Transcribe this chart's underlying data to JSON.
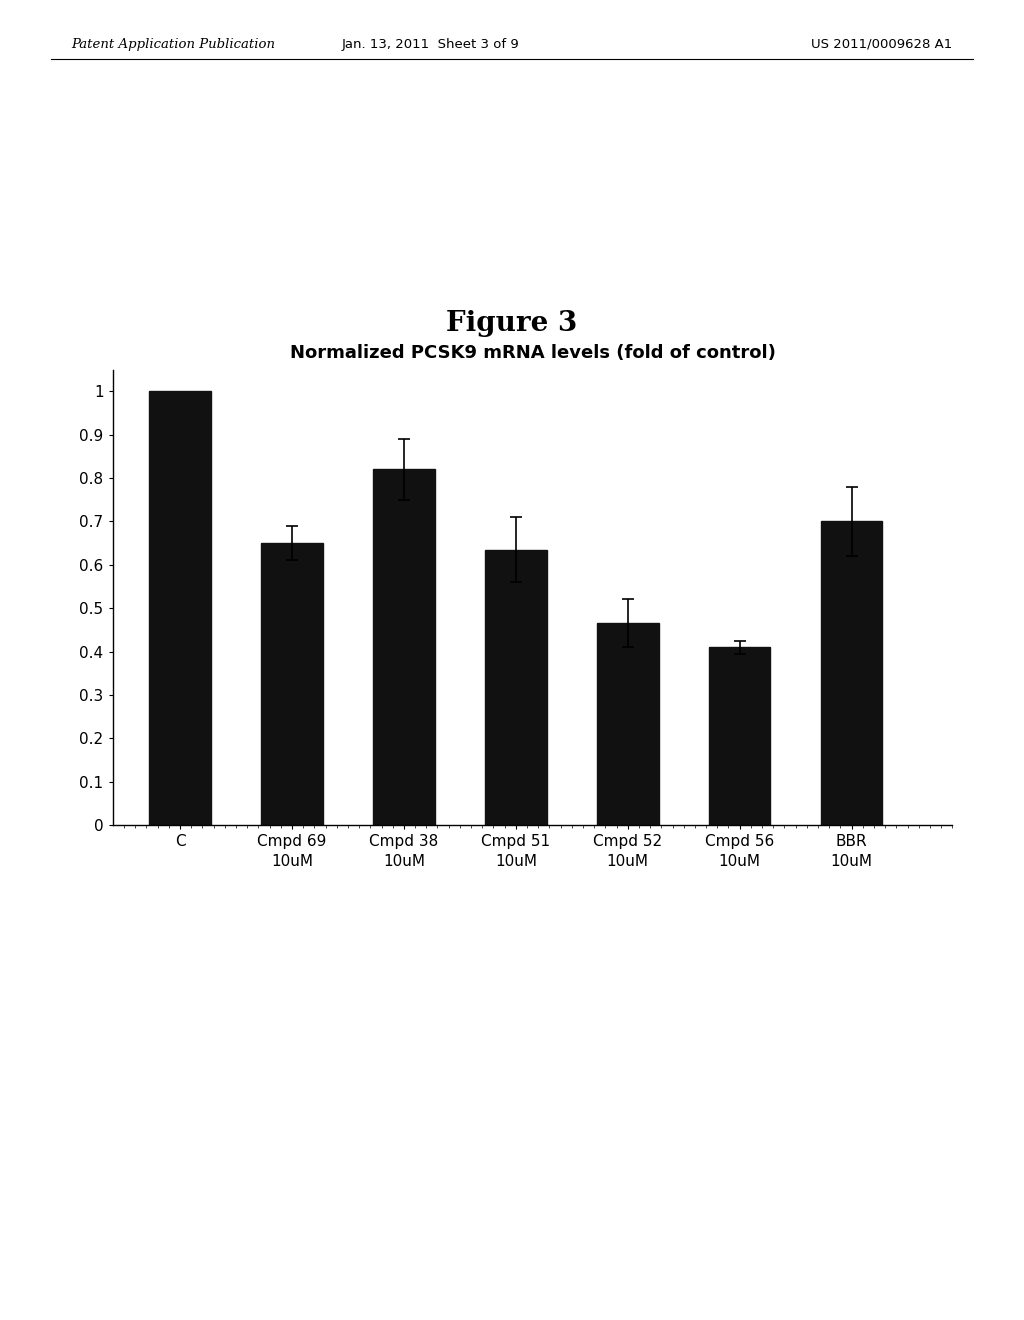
{
  "title": "Figure 3",
  "chart_title": "Normalized PCSK9 mRNA levels (fold of control)",
  "categories": [
    "C",
    "Cmpd 69\n10uM",
    "Cmpd 38\n10uM",
    "Cmpd 51\n10uM",
    "Cmpd 52\n10uM",
    "Cmpd 56\n10uM",
    "BBR\n10uM"
  ],
  "values": [
    1.0,
    0.65,
    0.82,
    0.635,
    0.465,
    0.41,
    0.7
  ],
  "errors": [
    0.0,
    0.04,
    0.07,
    0.075,
    0.055,
    0.015,
    0.08
  ],
  "bar_color": "#111111",
  "background_color": "#ffffff",
  "ylim": [
    0,
    1.05
  ],
  "yticks": [
    0,
    0.1,
    0.2,
    0.3,
    0.4,
    0.5,
    0.6,
    0.7,
    0.8,
    0.9,
    1
  ],
  "title_fontsize": 20,
  "chart_title_fontsize": 13,
  "tick_fontsize": 11,
  "header_left": "Patent Application Publication",
  "header_center": "Jan. 13, 2011  Sheet 3 of 9",
  "header_right": "US 2011/0009628 A1"
}
